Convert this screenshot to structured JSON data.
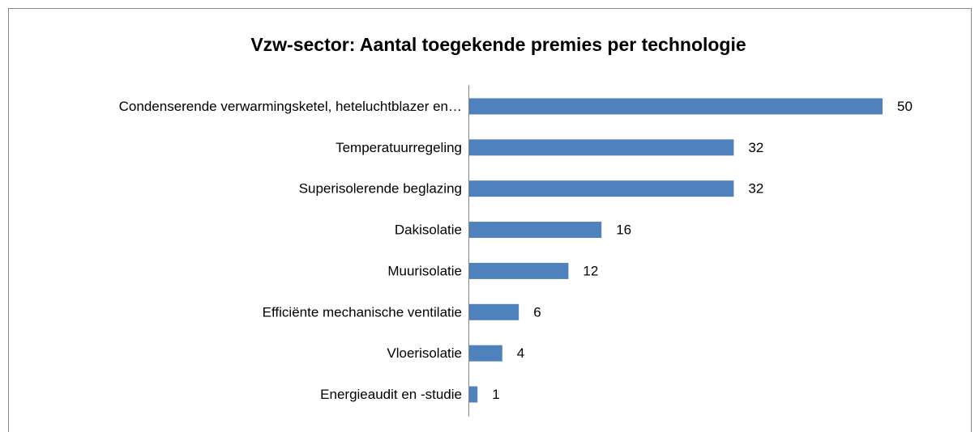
{
  "chart_data": {
    "type": "bar",
    "orientation": "horizontal",
    "title": "Vzw-sector: Aantal toegekende premies per technologie",
    "categories": [
      "Condenserende verwarmingsketel, heteluchtblazer en…",
      "Temperatuurregeling",
      "Superisolerende beglazing",
      "Dakisolatie",
      "Muurisolatie",
      "Efficiënte mechanische ventilatie",
      "Vloerisolatie",
      "Energieaudit en -studie"
    ],
    "values": [
      50,
      32,
      32,
      16,
      12,
      6,
      4,
      1
    ],
    "color": "#4f81bd",
    "xlim": [
      0,
      50
    ]
  }
}
